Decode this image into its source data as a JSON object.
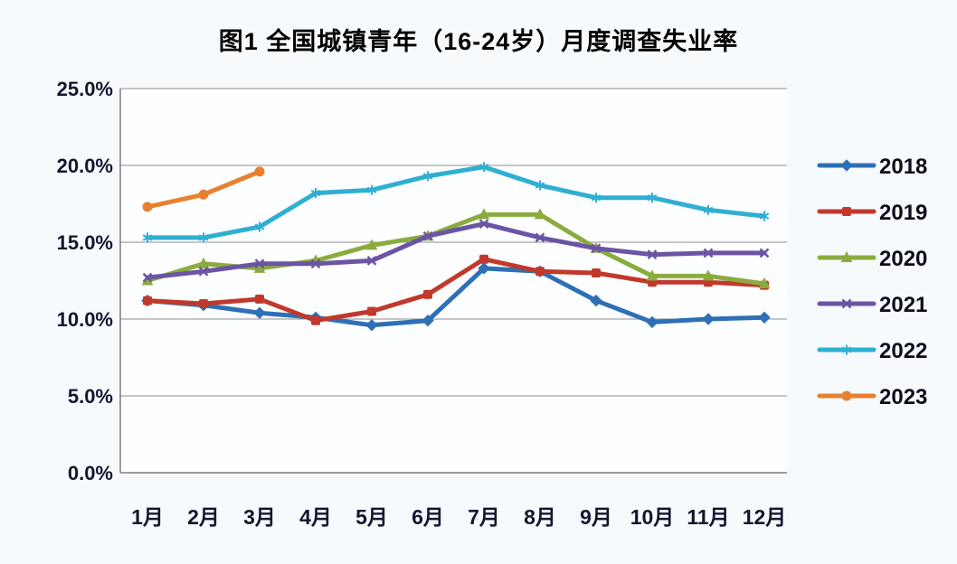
{
  "chart_data": {
    "type": "line",
    "title": "图1 全国城镇青年（16-24岁）月度调查失业率",
    "categories": [
      "1月",
      "2月",
      "3月",
      "4月",
      "5月",
      "6月",
      "7月",
      "8月",
      "9月",
      "10月",
      "11月",
      "12月"
    ],
    "xlabel": "",
    "ylabel": "",
    "ylim": [
      0,
      25
    ],
    "y_tick_step": 5,
    "y_ticks": [
      {
        "value": 25,
        "label": "25.0%"
      },
      {
        "value": 20,
        "label": "20.0%"
      },
      {
        "value": 15,
        "label": "15.0%"
      },
      {
        "value": 10,
        "label": "10.0%"
      },
      {
        "value": 5,
        "label": "5.0%"
      },
      {
        "value": 0,
        "label": "0.0%"
      }
    ],
    "grid": true,
    "legend_position": "right",
    "series": [
      {
        "name": "2018",
        "color": "#2E6FB6",
        "marker": "diamond",
        "values": [
          11.2,
          10.9,
          10.4,
          10.1,
          9.6,
          9.9,
          13.3,
          13.1,
          11.2,
          9.8,
          10.0,
          10.1
        ]
      },
      {
        "name": "2019",
        "color": "#C0392B",
        "marker": "square",
        "values": [
          11.2,
          11.0,
          11.3,
          9.9,
          10.5,
          11.6,
          13.9,
          13.1,
          13.0,
          12.4,
          12.4,
          12.2
        ]
      },
      {
        "name": "2020",
        "color": "#8AAC3E",
        "marker": "triangle",
        "values": [
          12.5,
          13.6,
          13.3,
          13.8,
          14.8,
          15.4,
          16.8,
          16.8,
          14.6,
          12.8,
          12.8,
          12.3
        ]
      },
      {
        "name": "2021",
        "color": "#6B54A4",
        "marker": "x",
        "values": [
          12.7,
          13.1,
          13.6,
          13.6,
          13.8,
          15.4,
          16.2,
          15.3,
          14.6,
          14.2,
          14.3,
          14.3
        ]
      },
      {
        "name": "2022",
        "color": "#2FAFD2",
        "marker": "asterisk",
        "values": [
          15.3,
          15.3,
          16.0,
          18.2,
          18.4,
          19.3,
          19.9,
          18.7,
          17.9,
          17.9,
          17.1,
          16.7
        ]
      },
      {
        "name": "2023",
        "color": "#E9802F",
        "marker": "circle",
        "values": [
          17.3,
          18.1,
          19.6,
          null,
          null,
          null,
          null,
          null,
          null,
          null,
          null,
          null
        ]
      }
    ]
  }
}
